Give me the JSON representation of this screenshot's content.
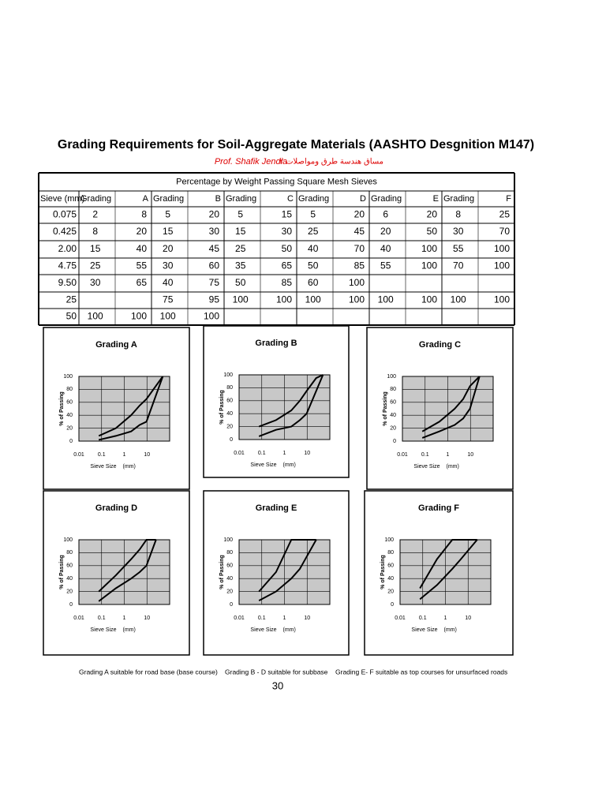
{
  "title": "Grading Requirements for Soil-Aggregate Materials (AASHTO Desgnition M147)",
  "author": "Prof. Shafik Jendia",
  "course": "مساق هندسة طرق ومواصلات ٢",
  "table": {
    "caption": "Percentage by Weight Passing Square Mesh Sieves",
    "header": [
      "Sieve (mm)",
      "Grading",
      "A",
      "Grading",
      "B",
      "Grading",
      "C",
      "Grading",
      "D",
      "Grading",
      "E",
      "Grading",
      "F"
    ],
    "rows": [
      [
        "0.075",
        2,
        8,
        5,
        20,
        5,
        15,
        5,
        20,
        6,
        20,
        8,
        25
      ],
      [
        "0.425",
        8,
        20,
        15,
        30,
        15,
        30,
        25,
        45,
        20,
        50,
        30,
        70
      ],
      [
        "2.00",
        15,
        40,
        20,
        45,
        25,
        50,
        40,
        70,
        40,
        100,
        55,
        100
      ],
      [
        "4.75",
        25,
        55,
        30,
        60,
        35,
        65,
        50,
        85,
        55,
        100,
        70,
        100
      ],
      [
        "9.50",
        30,
        65,
        40,
        75,
        50,
        85,
        60,
        100,
        null,
        null,
        null,
        null
      ],
      [
        "25",
        null,
        null,
        75,
        95,
        100,
        100,
        100,
        100,
        100,
        100,
        100,
        100
      ],
      [
        "50",
        100,
        100,
        100,
        100,
        null,
        null,
        null,
        null,
        null,
        null,
        null,
        null
      ]
    ]
  },
  "chart_axes": {
    "y_label": "% of Passing",
    "x_label": "Sieve Size",
    "x_unit": "(mm)",
    "xscale": "log",
    "xlim": [
      0.01,
      100
    ],
    "ylim": [
      0,
      100
    ],
    "xticks": [
      0.01,
      0.1,
      1,
      10
    ],
    "yticks": [
      0,
      20,
      40,
      60,
      80,
      100
    ]
  },
  "charts": [
    {
      "title": "Grading  A"
    },
    {
      "title": "Grading  B"
    },
    {
      "title": "Grading C"
    },
    {
      "title": "Grading D"
    },
    {
      "title": "Grading E"
    },
    {
      "title": "Grading F"
    }
  ],
  "notes": [
    "Grading A  suitable for road base (base course)",
    "Grading B - D suitable for subbase",
    "Grading E- F suitable as top courses for unsurfaced roads"
  ],
  "page_number": "30"
}
